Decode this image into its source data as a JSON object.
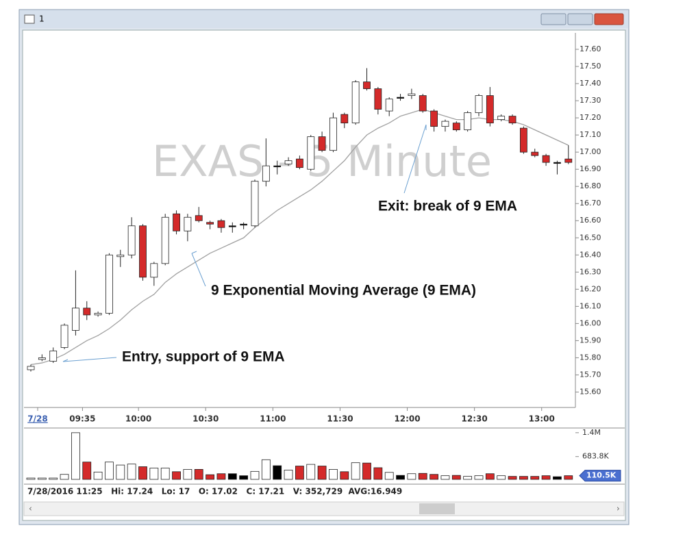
{
  "window": {
    "title": "1",
    "status": "7/28/2016 11:25   Hi: 17.24   Lo: 17   O: 17.02   C: 17.21   V: 352,729  AVG:16.949"
  },
  "chart_data": [
    {
      "type": "candlestick",
      "title": "EXAS - 5 Minute",
      "categories": [
        "7/28",
        null,
        null,
        null,
        "09:35",
        null,
        null,
        null,
        null,
        "10:00",
        null,
        null,
        null,
        null,
        null,
        "10:30",
        null,
        null,
        null,
        null,
        null,
        "11:00",
        null,
        null,
        null,
        null,
        null,
        "11:30",
        null,
        null,
        null,
        null,
        null,
        "12:00",
        null,
        null,
        null,
        null,
        null,
        "12:30",
        null,
        null,
        null,
        null,
        null,
        "13:00",
        null,
        null,
        null
      ],
      "open": [
        15.73,
        15.79,
        15.78,
        15.86,
        15.96,
        16.09,
        16.05,
        16.06,
        16.39,
        16.4,
        16.57,
        16.27,
        16.35,
        16.64,
        16.54,
        16.63,
        16.59,
        16.6,
        16.57,
        16.58,
        16.57,
        16.83,
        16.92,
        16.93,
        16.96,
        16.9,
        17.09,
        17.01,
        17.22,
        17.17,
        17.41,
        17.37,
        17.24,
        17.32,
        17.33,
        17.33,
        17.24,
        17.15,
        17.17,
        17.13,
        17.23,
        17.33,
        17.19,
        17.21,
        17.14,
        17.0,
        16.98,
        16.94,
        16.96
      ],
      "high": [
        15.76,
        15.82,
        15.86,
        16.0,
        16.31,
        16.13,
        16.07,
        16.41,
        16.43,
        16.62,
        16.58,
        16.36,
        16.64,
        16.66,
        16.64,
        16.68,
        16.6,
        16.61,
        16.59,
        16.59,
        16.84,
        17.08,
        16.95,
        16.97,
        16.98,
        17.1,
        17.12,
        17.23,
        17.23,
        17.42,
        17.49,
        17.38,
        17.32,
        17.34,
        17.37,
        17.34,
        17.25,
        17.19,
        17.18,
        17.24,
        17.34,
        17.38,
        17.22,
        17.22,
        17.15,
        17.02,
        16.99,
        16.95,
        17.04
      ],
      "low": [
        15.72,
        15.78,
        15.77,
        15.85,
        15.93,
        16.02,
        16.04,
        16.05,
        16.33,
        16.38,
        16.25,
        16.22,
        16.34,
        16.52,
        16.48,
        16.59,
        16.55,
        16.53,
        16.53,
        16.55,
        16.56,
        16.8,
        16.87,
        16.92,
        16.9,
        16.89,
        17.0,
        17.0,
        17.14,
        17.16,
        17.36,
        17.22,
        17.21,
        17.3,
        17.31,
        17.23,
        17.12,
        17.12,
        17.12,
        17.12,
        17.21,
        17.15,
        17.18,
        17.16,
        16.99,
        16.97,
        16.92,
        16.87,
        16.93
      ],
      "close": [
        15.75,
        15.8,
        15.84,
        15.99,
        16.09,
        16.05,
        16.06,
        16.4,
        16.4,
        16.57,
        16.27,
        16.35,
        16.62,
        16.54,
        16.62,
        16.6,
        16.58,
        16.56,
        16.57,
        16.58,
        16.83,
        16.92,
        16.92,
        16.95,
        16.91,
        17.09,
        17.01,
        17.2,
        17.17,
        17.41,
        17.37,
        17.25,
        17.31,
        17.32,
        17.34,
        17.24,
        17.15,
        17.18,
        17.13,
        17.23,
        17.33,
        17.17,
        17.21,
        17.17,
        17.0,
        16.98,
        16.94,
        16.94,
        16.94
      ],
      "up_color": "#ffffff",
      "down_color": "#d42a2a",
      "flat_color": "#000000",
      "ema": {
        "color": "#a0a0a0",
        "values": [
          15.76,
          15.77,
          15.79,
          15.82,
          15.86,
          15.9,
          15.93,
          15.97,
          16.02,
          16.08,
          16.13,
          16.17,
          16.24,
          16.29,
          16.33,
          16.37,
          16.41,
          16.44,
          16.47,
          16.5,
          16.56,
          16.61,
          16.66,
          16.7,
          16.74,
          16.78,
          16.83,
          16.89,
          16.95,
          17.03,
          17.1,
          17.14,
          17.17,
          17.21,
          17.23,
          17.25,
          17.23,
          17.21,
          17.19,
          17.19,
          17.2,
          17.19,
          17.19,
          17.18,
          17.16,
          17.13,
          17.1,
          17.07,
          17.04
        ]
      },
      "ylim": [
        15.53,
        17.64
      ],
      "yticks": [
        {
          "value": 17.6,
          "label": "17.60"
        },
        {
          "value": 17.5,
          "label": "17.50"
        },
        {
          "value": 17.4,
          "label": "17.40"
        },
        {
          "value": 17.3,
          "label": "17.30"
        },
        {
          "value": 17.2,
          "label": "17.20"
        },
        {
          "value": 17.1,
          "label": "17.10"
        },
        {
          "value": 17.0,
          "label": "17.00"
        },
        {
          "value": 16.9,
          "label": "16.90"
        },
        {
          "value": 16.8,
          "label": "16.80"
        },
        {
          "value": 16.7,
          "label": "16.70"
        },
        {
          "value": 16.6,
          "label": "16.60"
        },
        {
          "value": 16.5,
          "label": "16.50"
        },
        {
          "value": 16.4,
          "label": "16.40"
        },
        {
          "value": 16.3,
          "label": "16.30"
        },
        {
          "value": 16.2,
          "label": "16.20"
        },
        {
          "value": 16.1,
          "label": "16.10"
        },
        {
          "value": 16.0,
          "label": "16.00"
        },
        {
          "value": 15.9,
          "label": "15.90"
        },
        {
          "value": 15.8,
          "label": "15.80"
        },
        {
          "value": 15.7,
          "label": "15.70"
        },
        {
          "value": 15.6,
          "label": "15.60"
        }
      ],
      "annotations": [
        "Entry, support of 9 EMA",
        "9 Exponential Moving Average (9 EMA)",
        "Exit: break of 9 EMA"
      ]
    },
    {
      "type": "volume",
      "values": [
        40000,
        40000,
        40000,
        150000,
        1400000,
        520000,
        220000,
        520000,
        430000,
        460000,
        380000,
        340000,
        340000,
        230000,
        300000,
        300000,
        140000,
        170000,
        170000,
        110000,
        240000,
        590000,
        410000,
        280000,
        400000,
        450000,
        400000,
        300000,
        230000,
        500000,
        490000,
        350000,
        210000,
        120000,
        170000,
        180000,
        150000,
        110000,
        120000,
        90000,
        110000,
        170000,
        110000,
        90000,
        90000,
        90000,
        110000,
        80000,
        110500
      ],
      "ylim": [
        0,
        1500000
      ],
      "yticks": [
        {
          "value": 1400000,
          "label": "1.4M"
        },
        {
          "value": 683800,
          "label": "683.8K"
        }
      ],
      "current": {
        "value": 110500,
        "label": "110.5K"
      }
    }
  ]
}
